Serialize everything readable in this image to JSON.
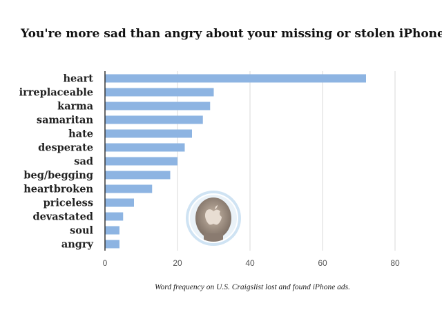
{
  "chart_data": {
    "type": "bar",
    "orientation": "horizontal",
    "title": "You're more sad than angry about your missing or stolen iPhone",
    "caption": "Word frequency on U.S. Craigslist lost and found iPhone ads.",
    "xlabel": "",
    "ylabel": "",
    "categories": [
      "heart",
      "irreplaceable",
      "karma",
      "samaritan",
      "hate",
      "desperate",
      "sad",
      "beg/begging",
      "heartbroken",
      "priceless",
      "devastated",
      "soul",
      "angry"
    ],
    "values": [
      72,
      30,
      29,
      27,
      24,
      22,
      20,
      18,
      13,
      8,
      5,
      4,
      4
    ],
    "xlim": [
      0,
      80
    ],
    "xticks": [
      "0",
      "20",
      "40",
      "60",
      "80"
    ],
    "grid": true,
    "bar_color": "#8db4e2",
    "grid_color": "#d9d9d9",
    "badge_icon": "apple-logo-head-icon"
  }
}
